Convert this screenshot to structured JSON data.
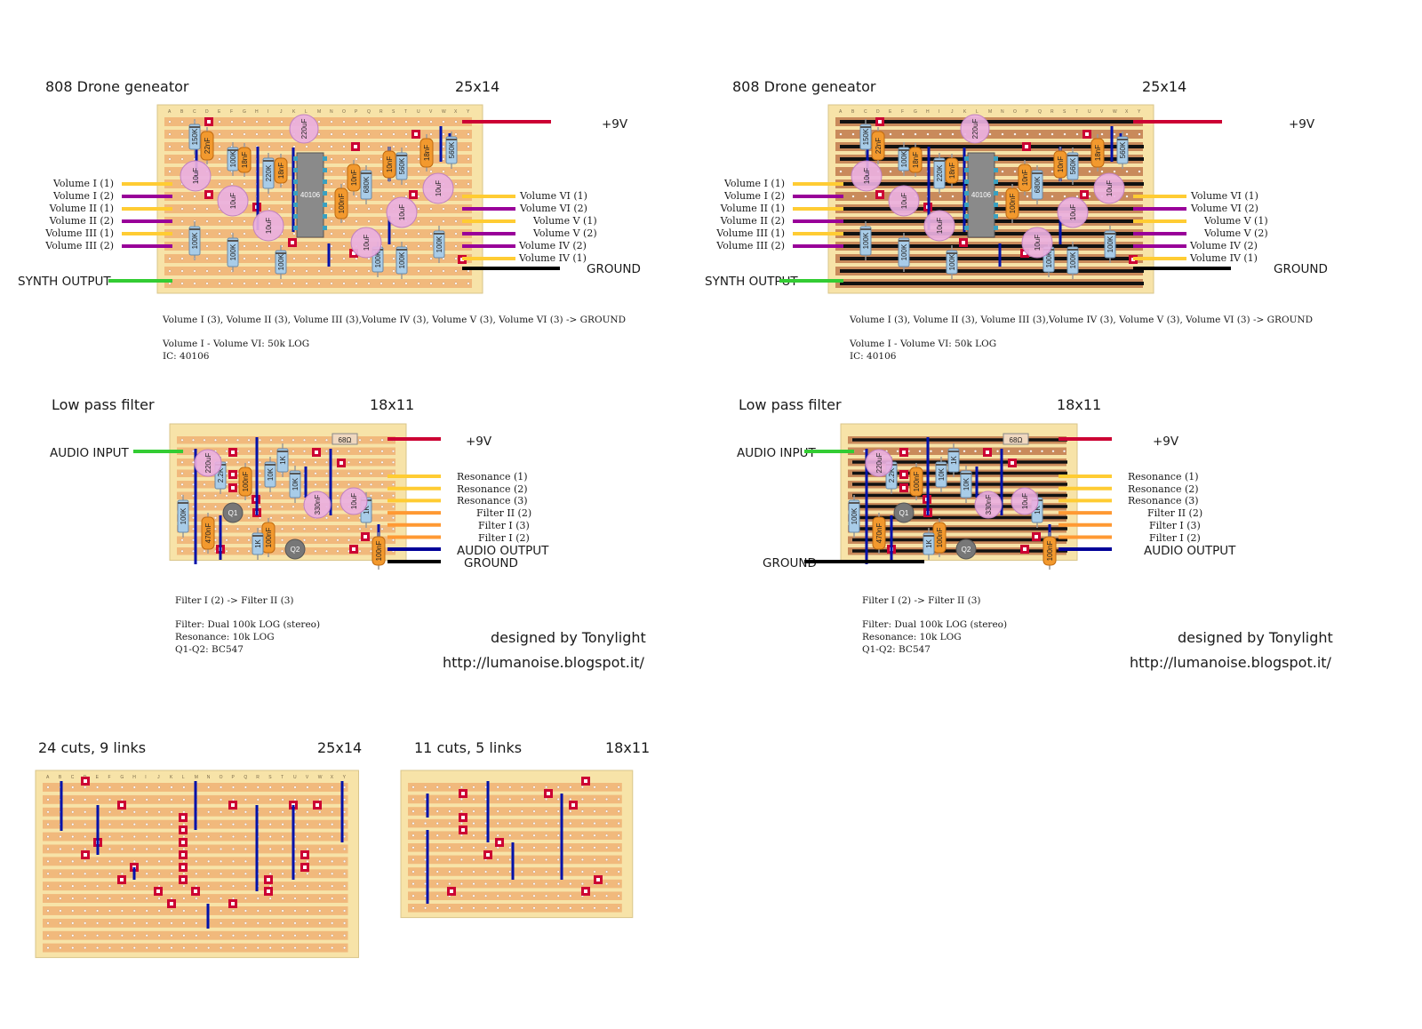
{
  "drone": {
    "title": "808 Drone geneator",
    "size": "25x14",
    "label_9v": "+9V",
    "label_ground": "GROUND",
    "label_synth_output": "SYNTH OUTPUT",
    "left_wires": [
      "Volume I (1)",
      "Volume I (2)",
      "Volume II (1)",
      "Volume II (2)",
      "Volume III (1)",
      "Volume III (2)"
    ],
    "right_wires": [
      "Volume VI (1)",
      "Volume VI (2)",
      "Volume V (1)",
      "Volume V (2)",
      "Volume IV (2)",
      "Volume IV (1)"
    ],
    "note1": "Volume I (3), Volume II (3), Volume III (3),Volume IV (3), Volume V (3), Volume VI (3) -> GROUND",
    "note2": "Volume I - Volume VI: 50k LOG",
    "note3": "IC: 40106",
    "ic_label": "40106",
    "component_labels": [
      "150K",
      "22nF",
      "100K",
      "18nF",
      "220uF",
      "220K",
      "18nF",
      "10uF",
      "10uF",
      "10uF",
      "10nF",
      "680K",
      "100nF",
      "10nF",
      "560K",
      "18nF",
      "560K",
      "10uF",
      "10uF",
      "100K",
      "100K",
      "100K",
      "100K",
      "100K",
      "10uF",
      "100K"
    ],
    "col_letters": [
      "A",
      "B",
      "C",
      "D",
      "E",
      "F",
      "G",
      "H",
      "I",
      "J",
      "K",
      "L",
      "M",
      "N",
      "O",
      "P",
      "Q",
      "R",
      "S",
      "T",
      "U",
      "V",
      "W",
      "X",
      "Y"
    ]
  },
  "lpf": {
    "title": "Low pass filter",
    "size": "18x11",
    "label_audio_input": "AUDIO INPUT",
    "label_9v": "+9V",
    "label_audio_output": "AUDIO OUTPUT",
    "label_ground": "GROUND",
    "right_wires": [
      "Resonance (1)",
      "Resonance (2)",
      "Resonance (3)",
      "Filter II (2)",
      "Filter I (3)",
      "Filter I (2)"
    ],
    "resistor_top": "68Ω",
    "note1": "Filter I (2) -> Filter II (3)",
    "note2": "Filter: Dual 100k LOG (stereo)",
    "note3": "Resonance: 10k LOG",
    "note4": "Q1-Q2: BC547",
    "component_labels": [
      "220uF",
      "2.2K",
      "100nF",
      "10K",
      "1K",
      "10K",
      "330nF",
      "10uF",
      "1K",
      "100K",
      "470nF",
      "100nF",
      "1K",
      "100nF",
      "Q1",
      "Q2"
    ]
  },
  "credit": {
    "designer": "designed by Tonylight",
    "url": "http://lumanoise.blogspot.it/"
  },
  "cuts_drone": {
    "title": "24 cuts, 9 links",
    "size": "25x14"
  },
  "cuts_lpf": {
    "title": "11 cuts, 5 links",
    "size": "18x11"
  },
  "colors": {
    "board": "#f7e3a8",
    "strip": "#f1b97c",
    "copper": "#c98a5b",
    "cut": "#cc0033",
    "link": "#0011aa",
    "wire_yellow": "#ffcc33",
    "wire_purple": "#990099",
    "wire_green": "#33cc33",
    "wire_red": "#cc0033",
    "wire_black": "#000000",
    "wire_orange": "#ff9933",
    "wire_navy": "#000099"
  }
}
